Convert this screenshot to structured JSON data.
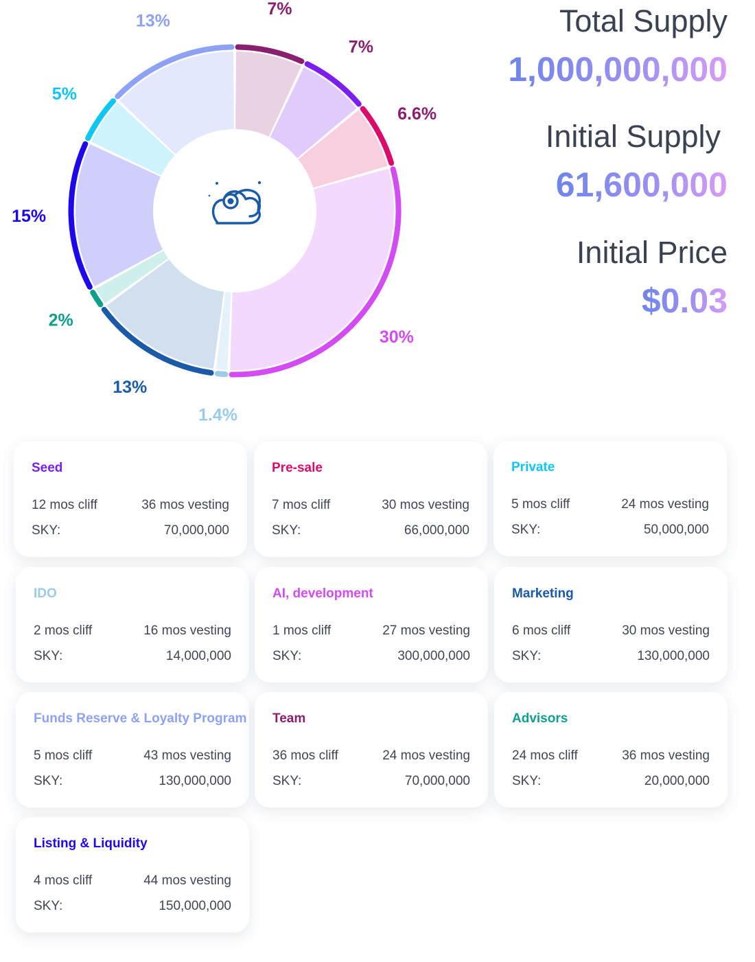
{
  "chart_data": {
    "type": "pie",
    "title": "",
    "slices": [
      {
        "label": "7%",
        "value": 7,
        "category": "Team",
        "color": "#8a1e6f",
        "fill": "#e9d3e3",
        "label_color": "#8a1e6f"
      },
      {
        "label": "7%",
        "value": 7,
        "category": "Seed",
        "color": "#7a1ff0",
        "fill": "#e0cbfb",
        "label_color": "#8a1e6f"
      },
      {
        "label": "6.6%",
        "value": 6.6,
        "category": "Pre-sale",
        "color": "#db0b6c",
        "fill": "#f7cfe0",
        "label_color": "#8a1e6f"
      },
      {
        "label": "30%",
        "value": 30,
        "category": "AI, development",
        "color": "#d34cf3",
        "fill": "#f3d9fd",
        "label_color": "#d34cf3"
      },
      {
        "label": "1.4%",
        "value": 1.4,
        "category": "IDO",
        "color": "#9bcbe8",
        "fill": "#e6f2fa",
        "label_color": "#9bcbe8"
      },
      {
        "label": "13%",
        "value": 13,
        "category": "Marketing",
        "color": "#1a5aa8",
        "fill": "#d2dfee",
        "label_color": "#1a5aa8"
      },
      {
        "label": "2%",
        "value": 2,
        "category": "Advisors",
        "color": "#0f9e8c",
        "fill": "#cfefec",
        "label_color": "#0f9e8c"
      },
      {
        "label": "15%",
        "value": 15,
        "category": "Listing & Liquidity",
        "color": "#1d08ee",
        "fill": "#d0cffb",
        "label_color": "#1d08ee"
      },
      {
        "label": "5%",
        "value": 5,
        "category": "Private",
        "color": "#0ec6f3",
        "fill": "#cff3fc",
        "label_color": "#0ec6f3"
      },
      {
        "label": "13%",
        "value": 13,
        "category": "Funds Reserve & Loyalty Program",
        "color": "#8ea2f5",
        "fill": "#e4e8fd",
        "label_color": "#8ea2f5"
      }
    ]
  },
  "stats": {
    "total_supply_title": "Total Supply",
    "total_supply_value": "1,000,000,000",
    "initial_supply_title": "Initial Supply",
    "initial_supply_value": "61,600,000",
    "initial_price_title": "Initial Price",
    "initial_price_value": "$0.03"
  },
  "center_icon": "cloud-eye-icon",
  "sky_label": "SKY:",
  "cards": [
    {
      "title": "Seed",
      "color": "#7a1ff0",
      "cliff": "12 mos cliff",
      "vesting": "36 mos vesting",
      "amount": "70,000,000"
    },
    {
      "title": "Pre-sale",
      "color": "#db0b6c",
      "cliff": "7 mos cliff",
      "vesting": "30 mos vesting",
      "amount": "66,000,000"
    },
    {
      "title": "Private",
      "color": "#0ec6f3",
      "cliff": "5 mos cliff",
      "vesting": "24 mos vesting",
      "amount": "50,000,000"
    },
    {
      "title": "IDO",
      "color": "#9bcbe8",
      "cliff": "2 mos cliff",
      "vesting": "16 mos vesting",
      "amount": "14,000,000"
    },
    {
      "title": "AI, development",
      "color": "#d34cf3",
      "cliff": "1 mos cliff",
      "vesting": "27 mos vesting",
      "amount": "300,000,000"
    },
    {
      "title": "Marketing",
      "color": "#1a5aa8",
      "cliff": "6 mos cliff",
      "vesting": "30 mos vesting",
      "amount": "130,000,000"
    },
    {
      "title": "Funds Reserve & Loyalty Program",
      "color": "#8ea2f5",
      "cliff": "5 mos cliff",
      "vesting": "43 mos vesting",
      "amount": "130,000,000"
    },
    {
      "title": "Team",
      "color": "#8a1e6f",
      "cliff": "36 mos cliff",
      "vesting": "24 mos vesting",
      "amount": "70,000,000"
    },
    {
      "title": "Advisors",
      "color": "#0f9e8c",
      "cliff": "24 mos cliff",
      "vesting": "36 mos vesting",
      "amount": "20,000,000"
    },
    {
      "title": "Listing & Liquidity",
      "color": "#1d08ee",
      "cliff": "4 mos cliff",
      "vesting": "44 mos vesting",
      "amount": "150,000,000"
    }
  ]
}
